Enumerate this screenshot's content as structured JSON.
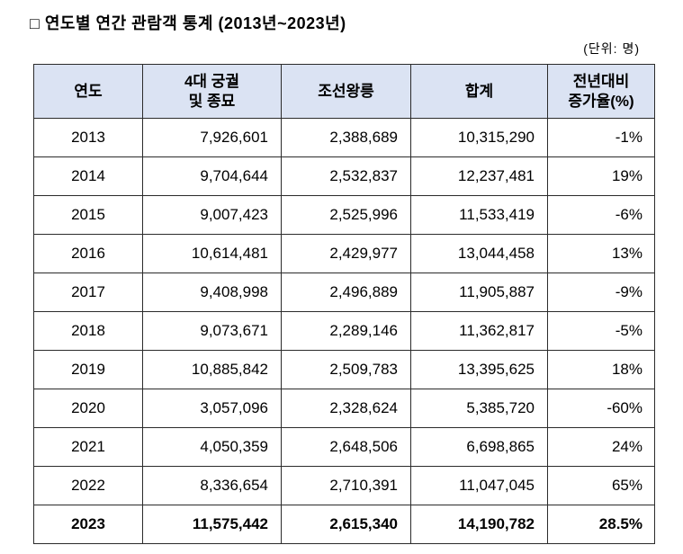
{
  "title": "□ 연도별 연간 관람객 통계 (2013년~2023년)",
  "unit_label": "(단위: 명)",
  "colors": {
    "header_bg": "#dbe3f3",
    "border": "#2b2b2b",
    "text": "#000000"
  },
  "table": {
    "headers": [
      "연도",
      "4대 궁궐\n및 종묘",
      "조선왕릉",
      "합계",
      "전년대비\n증가율(%)"
    ],
    "rows": [
      [
        "2013",
        "7,926,601",
        "2,388,689",
        "10,315,290",
        "-1%"
      ],
      [
        "2014",
        "9,704,644",
        "2,532,837",
        "12,237,481",
        "19%"
      ],
      [
        "2015",
        "9,007,423",
        "2,525,996",
        "11,533,419",
        "-6%"
      ],
      [
        "2016",
        "10,614,481",
        "2,429,977",
        "13,044,458",
        "13%"
      ],
      [
        "2017",
        "9,408,998",
        "2,496,889",
        "11,905,887",
        "-9%"
      ],
      [
        "2018",
        "9,073,671",
        "2,289,146",
        "11,362,817",
        "-5%"
      ],
      [
        "2019",
        "10,885,842",
        "2,509,783",
        "13,395,625",
        "18%"
      ],
      [
        "2020",
        "3,057,096",
        "2,328,624",
        "5,385,720",
        "-60%"
      ],
      [
        "2021",
        "4,050,359",
        "2,648,506",
        "6,698,865",
        "24%"
      ],
      [
        "2022",
        "8,336,654",
        "2,710,391",
        "11,047,045",
        "65%"
      ],
      [
        "2023",
        "11,575,442",
        "2,615,340",
        "14,190,782",
        "28.5%"
      ]
    ]
  },
  "chart_data": {
    "type": "table",
    "title": "연도별 연간 관람객 통계 (2013년~2023년)",
    "unit": "명",
    "categories": [
      2013,
      2014,
      2015,
      2016,
      2017,
      2018,
      2019,
      2020,
      2021,
      2022,
      2023
    ],
    "series": [
      {
        "name": "4대 궁궐 및 종묘",
        "values": [
          7926601,
          9704644,
          9007423,
          10614481,
          9408998,
          9073671,
          10885842,
          3057096,
          4050359,
          8336654,
          11575442
        ]
      },
      {
        "name": "조선왕릉",
        "values": [
          2388689,
          2532837,
          2525996,
          2429977,
          2496889,
          2289146,
          2509783,
          2328624,
          2648506,
          2710391,
          2615340
        ]
      },
      {
        "name": "합계",
        "values": [
          10315290,
          12237481,
          11533419,
          13044458,
          11905887,
          11362817,
          13395625,
          5385720,
          6698865,
          11047045,
          14190782
        ]
      },
      {
        "name": "전년대비 증가율(%)",
        "values": [
          -1,
          19,
          -6,
          13,
          -9,
          -5,
          18,
          -60,
          24,
          65,
          28.5
        ]
      }
    ]
  }
}
